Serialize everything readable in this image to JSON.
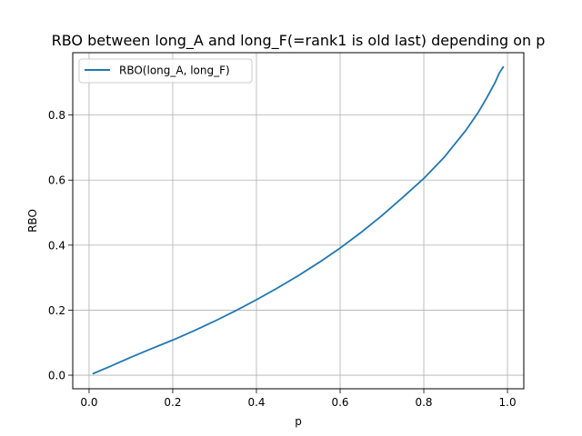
{
  "chart_data": {
    "type": "line",
    "title": "RBO between long_A and long_F(=rank1 is old last) depending on p",
    "xlabel": "p",
    "ylabel": "RBO",
    "xlim": [
      -0.039,
      1.039
    ],
    "ylim": [
      -0.04175,
      0.99175
    ],
    "xticks": [
      0.0,
      0.2,
      0.4,
      0.6,
      0.8,
      1.0
    ],
    "xtick_labels": [
      "0.0",
      "0.2",
      "0.4",
      "0.6",
      "0.8",
      "1.0"
    ],
    "yticks": [
      0.0,
      0.2,
      0.4,
      0.6,
      0.8
    ],
    "ytick_labels": [
      "0.0",
      "0.2",
      "0.4",
      "0.6",
      "0.8"
    ],
    "grid": true,
    "legend_position": "upper-left",
    "series": [
      {
        "name": "RBO(long_A, long_F)",
        "color": "#1f77b4",
        "x": [
          0.01,
          0.05,
          0.1,
          0.15,
          0.2,
          0.25,
          0.3,
          0.35,
          0.4,
          0.45,
          0.5,
          0.55,
          0.6,
          0.65,
          0.7,
          0.75,
          0.8,
          0.85,
          0.9,
          0.93,
          0.95,
          0.97,
          0.98,
          0.99
        ],
        "y": [
          0.005,
          0.027,
          0.055,
          0.082,
          0.108,
          0.136,
          0.166,
          0.198,
          0.232,
          0.268,
          0.306,
          0.347,
          0.391,
          0.439,
          0.491,
          0.547,
          0.605,
          0.672,
          0.752,
          0.808,
          0.852,
          0.899,
          0.928,
          0.948
        ]
      }
    ]
  }
}
